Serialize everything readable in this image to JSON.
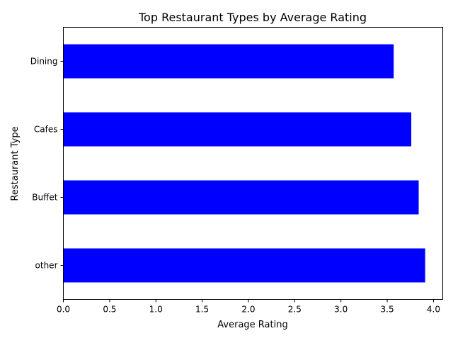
{
  "chart_data": {
    "type": "bar",
    "orientation": "horizontal",
    "title": "Top Restaurant Types by Average Rating",
    "xlabel": "Average Rating",
    "ylabel": "Restaurant Type",
    "categories": [
      "other",
      "Buffet",
      "Cafes",
      "Dining"
    ],
    "values": [
      3.91,
      3.84,
      3.76,
      3.57
    ],
    "xlim": [
      0,
      4.1
    ],
    "xticks": [
      "0.0",
      "0.5",
      "1.0",
      "1.5",
      "2.0",
      "2.5",
      "3.0",
      "3.5",
      "4.0"
    ],
    "grid": false,
    "legend": "none",
    "bar_color": "#0000ff"
  }
}
